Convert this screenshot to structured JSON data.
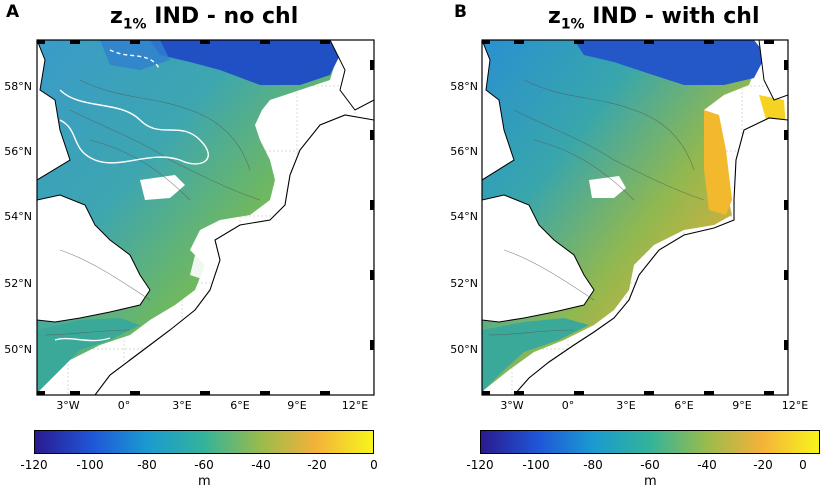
{
  "panels": [
    {
      "letter": "A",
      "title_main": "z",
      "title_sub": "1%",
      "title_rest": " IND - no chl",
      "lat_labels": [
        "58°N",
        "56°N",
        "54°N",
        "52°N",
        "50°N"
      ],
      "lon_labels": [
        "3°W",
        "0°",
        "3°E",
        "6°E",
        "9°E",
        "12°E"
      ],
      "colorbar_ticks": [
        "-120",
        "-100",
        "-80",
        "-60",
        "-40",
        "-20",
        "0"
      ],
      "colorbar_label": "m"
    },
    {
      "letter": "B",
      "title_main": "z",
      "title_sub": "1%",
      "title_rest": " IND - with chl",
      "lat_labels": [
        "58°N",
        "56°N",
        "54°N",
        "52°N",
        "50°N"
      ],
      "lon_labels": [
        "3°W",
        "0°",
        "3°E",
        "6°E",
        "9°E",
        "12°E"
      ],
      "colorbar_ticks": [
        "-120",
        "-100",
        "-80",
        "-60",
        "-40",
        "-20",
        "0"
      ],
      "colorbar_label": "m"
    }
  ],
  "colors": {
    "deep": "#1e3fae",
    "mid_blue": "#1f7fd0",
    "teal": "#36a8a0",
    "green": "#6fb860",
    "olive": "#a8b84a",
    "orange": "#f0b030",
    "yellow": "#f8f020"
  }
}
